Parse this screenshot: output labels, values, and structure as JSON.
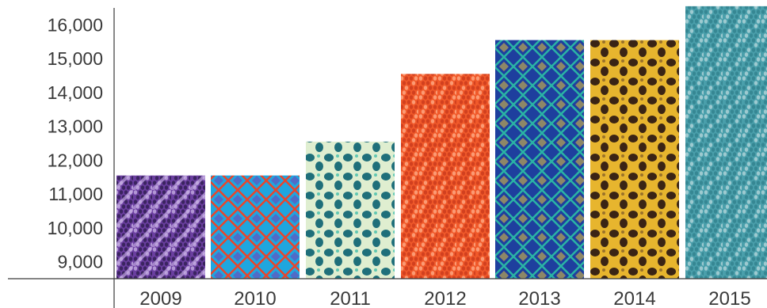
{
  "chart_data": {
    "type": "bar",
    "title": "",
    "xlabel": "",
    "ylabel": "",
    "categories": [
      "2009",
      "2010",
      "2011",
      "2012",
      "2013",
      "2014",
      "2015"
    ],
    "values": [
      11550,
      11550,
      12550,
      14550,
      15550,
      15550,
      16550
    ],
    "ylim": [
      8500,
      16500
    ],
    "yticks": [
      9000,
      10000,
      11000,
      12000,
      13000,
      14000,
      15000,
      16000
    ],
    "ytick_labels": [
      "9,000",
      "10,000",
      "11,000",
      "12,000",
      "13,000",
      "14,000",
      "15,000",
      "16,000"
    ],
    "grid": false,
    "legend": "none",
    "bar_textures": [
      {
        "name": "purple-woven",
        "base": "#6b3fa0",
        "stripe": "#c9b3e6",
        "accent": "#2b1a4a"
      },
      {
        "name": "blue-red-diamond",
        "base": "#1fa6df",
        "stripe": "#e8452c",
        "accent": "#7a3bb0"
      },
      {
        "name": "cream-teal-leopard",
        "base": "#dfeed0",
        "stripe": "#1f6f7a",
        "accent": "#2bb7a5"
      },
      {
        "name": "orange-weave",
        "base": "#f0592a",
        "stripe": "#ffb08a",
        "accent": "#c8381a"
      },
      {
        "name": "blue-green-diamond",
        "base": "#1e3f9e",
        "stripe": "#2ab3a4",
        "accent": "#e7c23a"
      },
      {
        "name": "yellow-leopard",
        "base": "#e7b52e",
        "stripe": "#3a2415",
        "accent": "#7a5526"
      },
      {
        "name": "teal-weave",
        "base": "#4a9fab",
        "stripe": "#b8d8dc",
        "accent": "#2f7f8b"
      }
    ]
  }
}
